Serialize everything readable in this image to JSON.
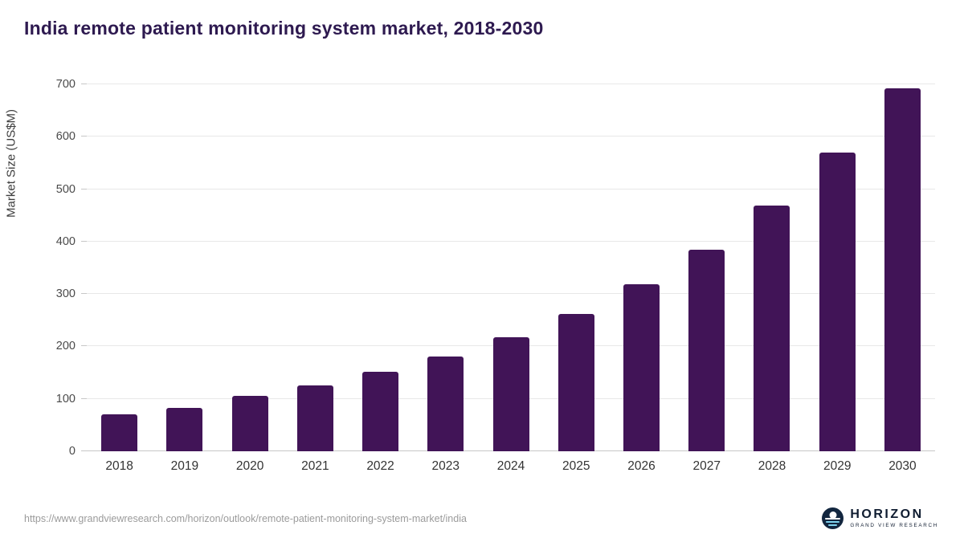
{
  "chart_data": {
    "type": "bar",
    "title": "India remote patient monitoring system market, 2018-2030",
    "categories": [
      "2018",
      "2019",
      "2020",
      "2021",
      "2022",
      "2023",
      "2024",
      "2025",
      "2026",
      "2027",
      "2028",
      "2029",
      "2030"
    ],
    "values": [
      70,
      82,
      105,
      125,
      152,
      181,
      218,
      262,
      318,
      385,
      468,
      570,
      692
    ],
    "xlabel": "",
    "ylabel": "Market Size (US$M)",
    "ylim": [
      0,
      700
    ],
    "yticks": [
      0,
      100,
      200,
      300,
      400,
      500,
      600,
      700
    ],
    "bar_color": "#411457",
    "grid": "horizontal",
    "legend": "none"
  },
  "footer": {
    "source_url": "https://www.grandviewresearch.com/horizon/outlook/remote-patient-monitoring-system-market/india",
    "logo": {
      "name": "HORIZON",
      "tagline": "GRAND VIEW RESEARCH"
    }
  },
  "colors": {
    "title": "#2e1a50",
    "bar": "#411457",
    "gridline": "#e8e8e8",
    "axis": "#c7c7c7"
  }
}
